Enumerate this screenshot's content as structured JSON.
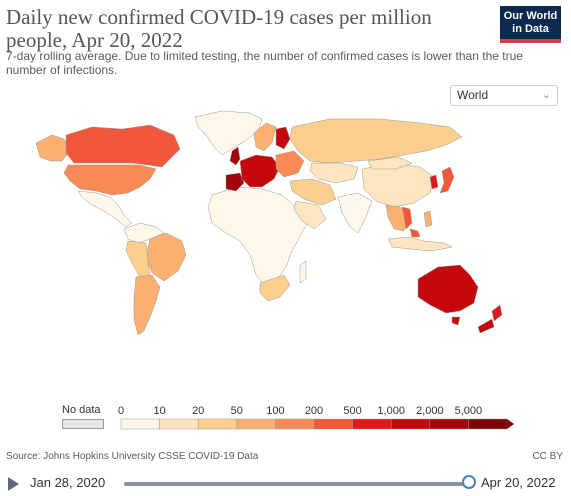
{
  "header": {
    "title": "Daily new confirmed COVID-19 cases per million people, Apr 20, 2022",
    "subtitle": "7-day rolling average. Due to limited testing, the number of confirmed cases is lower than the true number of infections.",
    "logo_line1": "Our World",
    "logo_line2": "in Data"
  },
  "controls": {
    "region_value": "World"
  },
  "legend": {
    "no_data_label": "No data",
    "no_data_color": "#e4e4e4",
    "bins": [
      {
        "label": "0",
        "color": "#fef7ea"
      },
      {
        "label": "10",
        "color": "#fde6bf"
      },
      {
        "label": "20",
        "color": "#fccf8e"
      },
      {
        "label": "50",
        "color": "#fbb071"
      },
      {
        "label": "100",
        "color": "#f98a54"
      },
      {
        "label": "200",
        "color": "#f1583b"
      },
      {
        "label": "500",
        "color": "#e0171b"
      },
      {
        "label": "1,000",
        "color": "#c4080e"
      },
      {
        "label": "2,000",
        "color": "#a1040b"
      },
      {
        "label": "5,000",
        "color": "#7d0209"
      }
    ]
  },
  "map_colors": {
    "canada": "#f1583b",
    "usa": "#f98a54",
    "alaska": "#fbb071",
    "greenland": "#fef7ea",
    "mexico": "#fef7ea",
    "central_america": "#fef7ea",
    "south_america_north": "#fef7ea",
    "brazil": "#fbb071",
    "peru_bolivia": "#fccf8e",
    "argentina_chile": "#fbb071",
    "africa": "#fef7ea",
    "south_africa": "#fccf8e",
    "europe_west": "#c4080e",
    "iberia": "#a1040b",
    "uk": "#a1040b",
    "scandinavia": "#fbb071",
    "finland": "#c4080e",
    "eastern_europe": "#f98a54",
    "russia": "#fccf8e",
    "kazakhstan": "#fde6bf",
    "middle_east": "#fde6bf",
    "iran_turkey": "#fccf8e",
    "india": "#fef7ea",
    "china": "#fde6bf",
    "mongolia": "#fde6bf",
    "korea": "#e0171b",
    "japan": "#f1583b",
    "southeast_asia": "#fbb071",
    "vietnam": "#f1583b",
    "indonesia": "#fde6bf",
    "australia": "#c4080e",
    "new_zealand": "#e0171b",
    "nz_south": "#c4080e"
  },
  "footer": {
    "source": "Source: Johns Hopkins University CSSE COVID-19 Data",
    "license": "CC BY"
  },
  "timeline": {
    "start_date": "Jan 28, 2020",
    "end_date": "Apr 20, 2022",
    "position": 1.0
  }
}
